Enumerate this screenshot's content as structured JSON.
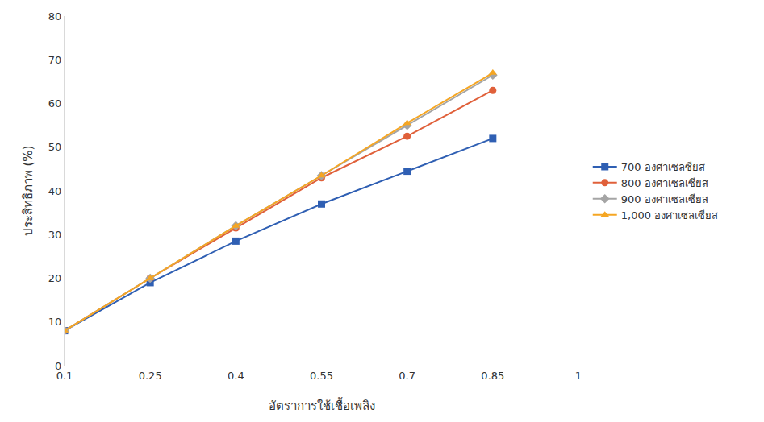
{
  "chart_data": {
    "type": "line",
    "x_label": "อัตราการใช้เชื้อเพลิง",
    "y_label": "ประสิทธิภาพ (%)",
    "x": [
      0.1,
      0.25,
      0.4,
      0.55,
      0.7,
      0.85
    ],
    "xlim": [
      0.1,
      1
    ],
    "xticks": [
      0.1,
      0.25,
      0.4,
      0.55,
      0.7,
      0.85,
      1
    ],
    "ylim": [
      0,
      80
    ],
    "yticks": [
      0,
      10,
      20,
      30,
      40,
      50,
      60,
      70,
      80
    ],
    "grid": false,
    "legend": "right",
    "series": [
      {
        "name": "700 องศาเซลซียส",
        "color": "#2f5fb3",
        "marker": "square",
        "values": [
          8,
          19,
          28.5,
          37,
          44.5,
          52
        ]
      },
      {
        "name": "800 องศาเซลเซียส",
        "color": "#e0603a",
        "marker": "circle",
        "values": [
          8,
          20,
          31.5,
          43,
          52.5,
          63
        ]
      },
      {
        "name": "900 องศาเซลเซียส",
        "color": "#a5a5a5",
        "marker": "diamond",
        "values": [
          8,
          20,
          32,
          43.5,
          55,
          66.5
        ]
      },
      {
        "name": "1,000 องศาเซลเซียส",
        "color": "#f5a623",
        "marker": "triangle-up",
        "values": [
          8,
          20,
          32,
          43.5,
          55.5,
          67
        ]
      }
    ]
  }
}
